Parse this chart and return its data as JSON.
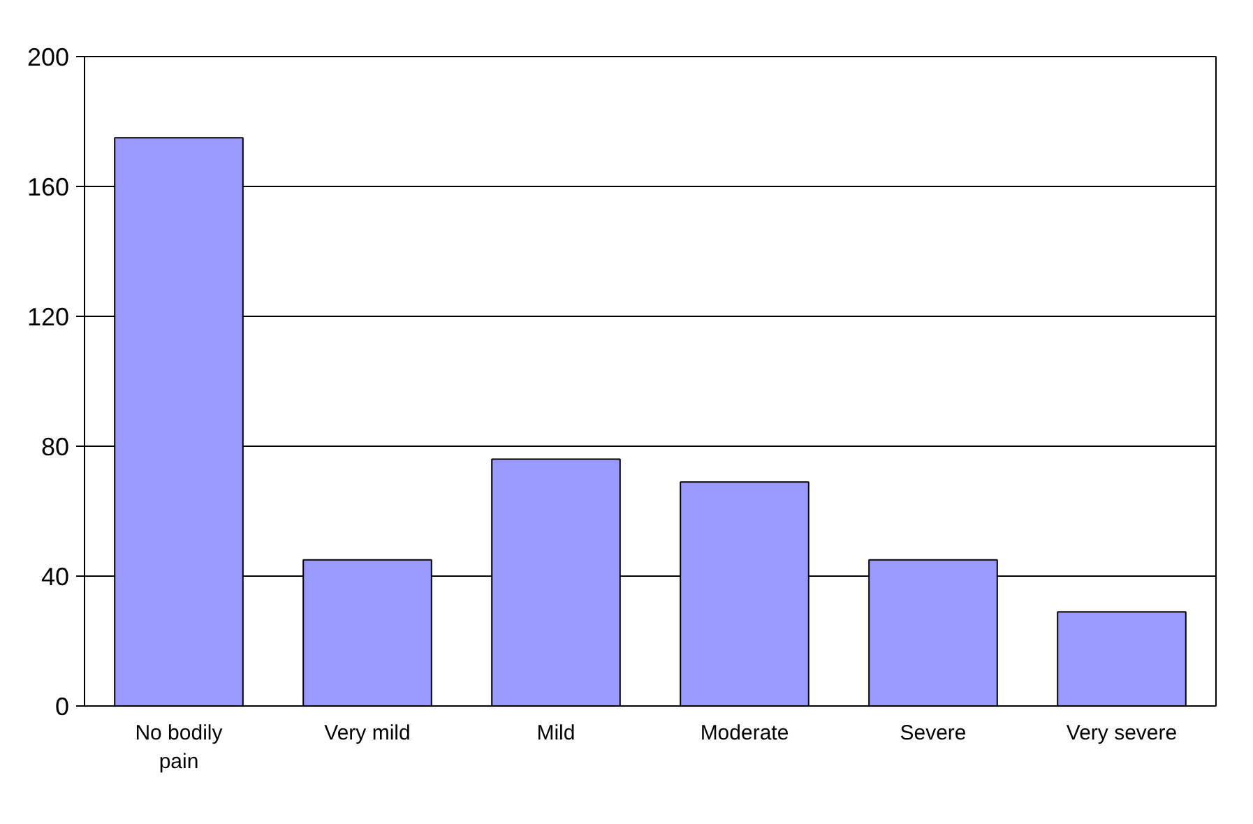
{
  "chart_data": {
    "type": "bar",
    "categories": [
      "No bodily pain",
      "Very mild",
      "Mild",
      "Moderate",
      "Severe",
      "Very severe"
    ],
    "values": [
      175,
      45,
      76,
      69,
      45,
      29
    ],
    "color": "#9999ff",
    "ylim": [
      0,
      200
    ],
    "yticks": [
      0,
      40,
      80,
      120,
      160,
      200
    ],
    "grid": "y"
  }
}
